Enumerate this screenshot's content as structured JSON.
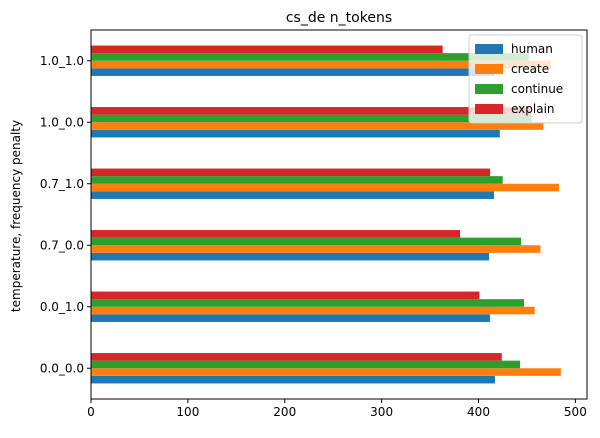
{
  "chart_data": {
    "type": "bar",
    "orientation": "horizontal",
    "title": "cs_de n_tokens",
    "xlabel": "",
    "ylabel": "temperature, frequency penalty",
    "categories": [
      "0.0_0.0",
      "0.0_1.0",
      "0.7_0.0",
      "0.7_1.0",
      "1.0_0.0",
      "1.0_1.0"
    ],
    "xlim": [
      0,
      512
    ],
    "xticks": [
      0,
      100,
      200,
      300,
      400,
      500
    ],
    "grid": false,
    "legend_position": "top-right",
    "series": [
      {
        "name": "human",
        "color": "#1f77b4",
        "values": [
          417,
          412,
          411,
          416,
          422,
          417
        ]
      },
      {
        "name": "create",
        "color": "#ff7f0e",
        "values": [
          485,
          458,
          464,
          483,
          467,
          475
        ]
      },
      {
        "name": "continue",
        "color": "#2ca02c",
        "values": [
          443,
          447,
          444,
          425,
          455,
          452
        ]
      },
      {
        "name": "explain",
        "color": "#d62728",
        "values": [
          424,
          401,
          381,
          412,
          454,
          363
        ]
      }
    ]
  }
}
